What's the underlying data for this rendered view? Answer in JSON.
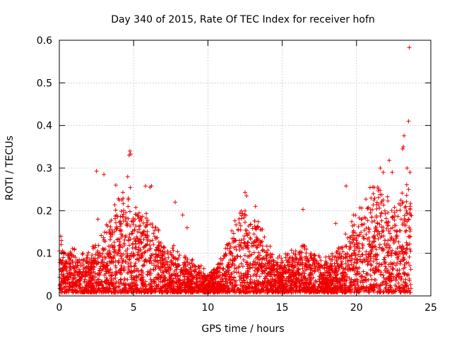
{
  "chart_data": {
    "type": "scatter",
    "title": "Day 340 of 2015, Rate Of TEC Index for receiver hofn",
    "xlabel": "GPS time / hours",
    "ylabel": "ROTI / TECUs",
    "xlim": [
      0,
      25
    ],
    "ylim": [
      0,
      0.6
    ],
    "xticks": [
      0,
      5,
      10,
      15,
      20,
      25
    ],
    "xtick_labels": [
      "0",
      "5",
      "10",
      "15",
      "20",
      "25"
    ],
    "yticks": [
      0,
      0.1,
      0.2,
      0.3,
      0.4,
      0.5,
      0.6
    ],
    "ytick_labels": [
      "0",
      "0.1",
      "0.2",
      "0.3",
      "0.4",
      "0.5",
      "0.6"
    ],
    "grid": true,
    "marker": "plus",
    "color": "#ee0000",
    "envelope": {
      "description": "approximate upper bound of dense ROTI cloud by hour",
      "hours": [
        0,
        0.5,
        1,
        1.5,
        2,
        2.5,
        3,
        3.5,
        4,
        4.5,
        5,
        5.5,
        6,
        6.5,
        7,
        7.5,
        8,
        8.5,
        9,
        9.5,
        10,
        10.5,
        11,
        11.5,
        12,
        12.5,
        13,
        13.5,
        14,
        14.5,
        15,
        15.5,
        16,
        16.5,
        17,
        17.5,
        18,
        18.5,
        19,
        19.5,
        20,
        20.5,
        21,
        21.5,
        22,
        22.5,
        23,
        23.5,
        23.7
      ],
      "values": [
        0.13,
        0.12,
        0.11,
        0.1,
        0.11,
        0.12,
        0.15,
        0.18,
        0.22,
        0.26,
        0.24,
        0.2,
        0.19,
        0.16,
        0.13,
        0.12,
        0.1,
        0.09,
        0.08,
        0.07,
        0.05,
        0.07,
        0.1,
        0.14,
        0.2,
        0.22,
        0.19,
        0.17,
        0.12,
        0.1,
        0.09,
        0.1,
        0.11,
        0.12,
        0.1,
        0.09,
        0.09,
        0.1,
        0.12,
        0.15,
        0.2,
        0.22,
        0.25,
        0.28,
        0.24,
        0.2,
        0.22,
        0.26,
        0.23
      ]
    },
    "outliers": [
      {
        "x": 0.1,
        "y": 0.14
      },
      {
        "x": 2.5,
        "y": 0.293
      },
      {
        "x": 3.0,
        "y": 0.285
      },
      {
        "x": 2.6,
        "y": 0.18
      },
      {
        "x": 3.8,
        "y": 0.26
      },
      {
        "x": 4.6,
        "y": 0.28
      },
      {
        "x": 4.75,
        "y": 0.34
      },
      {
        "x": 4.8,
        "y": 0.333
      },
      {
        "x": 4.7,
        "y": 0.33
      },
      {
        "x": 5.8,
        "y": 0.258
      },
      {
        "x": 6.1,
        "y": 0.255
      },
      {
        "x": 6.2,
        "y": 0.258
      },
      {
        "x": 7.8,
        "y": 0.22
      },
      {
        "x": 8.3,
        "y": 0.19
      },
      {
        "x": 8.6,
        "y": 0.16
      },
      {
        "x": 12.5,
        "y": 0.243
      },
      {
        "x": 12.6,
        "y": 0.235
      },
      {
        "x": 13.2,
        "y": 0.21
      },
      {
        "x": 16.4,
        "y": 0.203
      },
      {
        "x": 18.6,
        "y": 0.17
      },
      {
        "x": 19.3,
        "y": 0.258
      },
      {
        "x": 19.8,
        "y": 0.19
      },
      {
        "x": 21.6,
        "y": 0.3
      },
      {
        "x": 21.8,
        "y": 0.29
      },
      {
        "x": 22.2,
        "y": 0.318
      },
      {
        "x": 22.4,
        "y": 0.29
      },
      {
        "x": 23.1,
        "y": 0.345
      },
      {
        "x": 23.15,
        "y": 0.35
      },
      {
        "x": 23.2,
        "y": 0.376
      },
      {
        "x": 23.4,
        "y": 0.3
      },
      {
        "x": 23.5,
        "y": 0.41
      },
      {
        "x": 23.55,
        "y": 0.583
      },
      {
        "x": 23.6,
        "y": 0.29
      },
      {
        "x": 23.5,
        "y": 0.25
      },
      {
        "x": 23.6,
        "y": 0.21
      }
    ]
  }
}
